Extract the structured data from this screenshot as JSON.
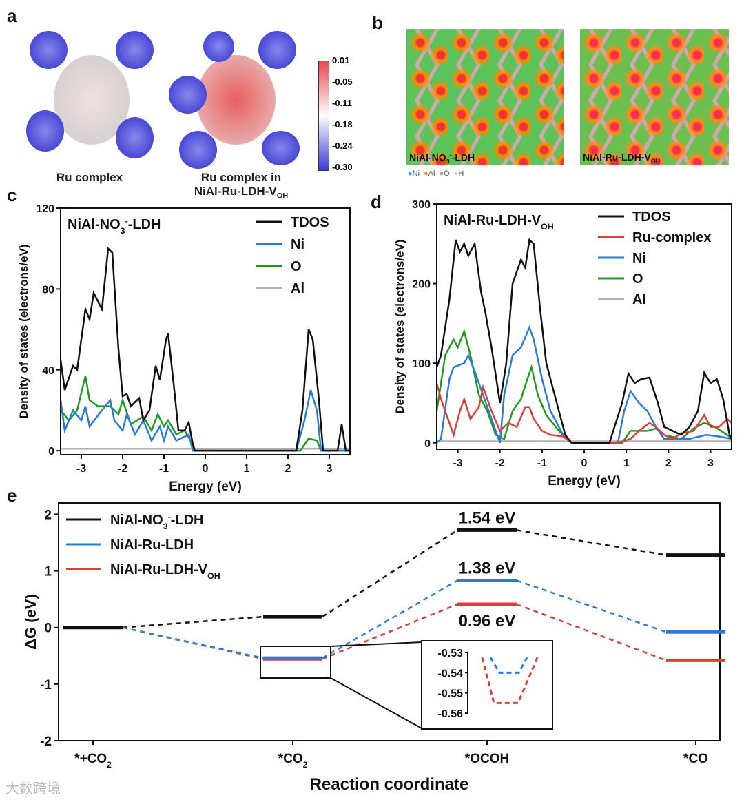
{
  "panels": {
    "a": "a",
    "b": "b",
    "c": "c",
    "d": "d",
    "e": "e"
  },
  "panel_a": {
    "caption1": "Ru complex",
    "caption2_line1": "Ru complex in",
    "caption2_line2": "NiAl-Ru-LDH-V",
    "caption2_sub": "OH",
    "colorbar_ticks": [
      "0.01",
      "-0.05",
      "-0.11",
      "-0.18",
      "-0.24",
      "-0.30"
    ],
    "colors": {
      "high": "#e8474b",
      "mid": "#ffffff",
      "low": "#3a3ad8"
    }
  },
  "panel_b": {
    "label1": "NiAl-NO",
    "label1_sub": "3",
    "label1_sup": "-",
    "label1_end": "-LDH",
    "label2": "NiAl-Ru-LDH-V",
    "label2_sub": "OH",
    "legend": [
      "Ni",
      "Al",
      "O",
      "H"
    ]
  },
  "chart_data": [
    {
      "type": "line",
      "panel": "c",
      "title": "NiAl-NO3--LDH",
      "xlabel": "Energy (eV)",
      "ylabel": "Density of states (electrons/eV)",
      "xlim": [
        -3.5,
        3.5
      ],
      "ylim": [
        -2,
        120
      ],
      "xticks": [
        -3,
        -2,
        -1,
        0,
        1,
        2,
        3
      ],
      "yticks": [
        0,
        40,
        80,
        120
      ],
      "legend_position": "top-right",
      "series": [
        {
          "name": "TDOS",
          "color": "#111111",
          "points": [
            [
              -3.5,
              45
            ],
            [
              -3.4,
              30
            ],
            [
              -3.2,
              42
            ],
            [
              -3.1,
              40
            ],
            [
              -2.9,
              70
            ],
            [
              -2.8,
              65
            ],
            [
              -2.7,
              78
            ],
            [
              -2.5,
              70
            ],
            [
              -2.35,
              100
            ],
            [
              -2.25,
              98
            ],
            [
              -2.1,
              50
            ],
            [
              -2.0,
              27
            ],
            [
              -1.9,
              28
            ],
            [
              -1.8,
              22
            ],
            [
              -1.6,
              26
            ],
            [
              -1.5,
              15
            ],
            [
              -1.35,
              20
            ],
            [
              -1.2,
              42
            ],
            [
              -1.1,
              35
            ],
            [
              -0.95,
              55
            ],
            [
              -0.9,
              58
            ],
            [
              -0.75,
              30
            ],
            [
              -0.65,
              10
            ],
            [
              -0.5,
              10
            ],
            [
              -0.4,
              14
            ],
            [
              -0.3,
              3
            ],
            [
              -0.25,
              0
            ],
            [
              2.2,
              0
            ],
            [
              2.35,
              20
            ],
            [
              2.5,
              60
            ],
            [
              2.6,
              55
            ],
            [
              2.75,
              25
            ],
            [
              2.85,
              0
            ],
            [
              3.2,
              0
            ],
            [
              3.3,
              13
            ],
            [
              3.4,
              0
            ],
            [
              3.5,
              0
            ]
          ]
        },
        {
          "name": "Ni",
          "color": "#2a7bd4",
          "points": [
            [
              -3.5,
              25
            ],
            [
              -3.4,
              10
            ],
            [
              -3.2,
              20
            ],
            [
              -3.0,
              15
            ],
            [
              -2.9,
              22
            ],
            [
              -2.8,
              12
            ],
            [
              -2.5,
              20
            ],
            [
              -2.3,
              25
            ],
            [
              -2.2,
              15
            ],
            [
              -2.0,
              10
            ],
            [
              -1.9,
              18
            ],
            [
              -1.7,
              8
            ],
            [
              -1.5,
              15
            ],
            [
              -1.3,
              5
            ],
            [
              -1.1,
              12
            ],
            [
              -1.0,
              5
            ],
            [
              -0.9,
              12
            ],
            [
              -0.7,
              5
            ],
            [
              -0.4,
              8
            ],
            [
              -0.3,
              0
            ],
            [
              2.2,
              0
            ],
            [
              2.4,
              15
            ],
            [
              2.55,
              30
            ],
            [
              2.7,
              20
            ],
            [
              2.8,
              0
            ],
            [
              3.5,
              0
            ]
          ]
        },
        {
          "name": "O",
          "color": "#1f9a1f",
          "points": [
            [
              -3.5,
              20
            ],
            [
              -3.3,
              15
            ],
            [
              -3.1,
              20
            ],
            [
              -2.9,
              37
            ],
            [
              -2.8,
              25
            ],
            [
              -2.6,
              22
            ],
            [
              -2.3,
              22
            ],
            [
              -2.1,
              18
            ],
            [
              -2.0,
              25
            ],
            [
              -1.8,
              13
            ],
            [
              -1.5,
              17
            ],
            [
              -1.3,
              10
            ],
            [
              -1.15,
              18
            ],
            [
              -1.0,
              12
            ],
            [
              -0.9,
              15
            ],
            [
              -0.7,
              8
            ],
            [
              -0.5,
              10
            ],
            [
              -0.3,
              3
            ],
            [
              -0.25,
              0
            ],
            [
              2.3,
              0
            ],
            [
              2.5,
              6
            ],
            [
              2.7,
              5
            ],
            [
              2.8,
              0
            ],
            [
              3.5,
              0
            ]
          ]
        },
        {
          "name": "Al",
          "color": "#b0b0b0",
          "points": [
            [
              -3.5,
              1
            ],
            [
              3.5,
              1
            ]
          ]
        }
      ]
    },
    {
      "type": "line",
      "panel": "d",
      "title": "NiAl-Ru-LDH-VOH",
      "xlabel": "Energy (eV)",
      "ylabel": "Density of states (electrons/eV)",
      "xlim": [
        -3.5,
        3.5
      ],
      "ylim": [
        -8,
        300
      ],
      "xticks": [
        -3,
        -2,
        -1,
        0,
        1,
        2,
        3
      ],
      "yticks": [
        0,
        100,
        200,
        300
      ],
      "legend_position": "top-right",
      "series": [
        {
          "name": "TDOS",
          "color": "#111111",
          "points": [
            [
              -3.5,
              95
            ],
            [
              -3.4,
              110
            ],
            [
              -3.2,
              180
            ],
            [
              -3.05,
              255
            ],
            [
              -2.95,
              240
            ],
            [
              -2.85,
              250
            ],
            [
              -2.75,
              235
            ],
            [
              -2.6,
              250
            ],
            [
              -2.45,
              190
            ],
            [
              -2.35,
              165
            ],
            [
              -2.2,
              120
            ],
            [
              -2.0,
              50
            ],
            [
              -1.85,
              100
            ],
            [
              -1.7,
              200
            ],
            [
              -1.6,
              215
            ],
            [
              -1.5,
              230
            ],
            [
              -1.4,
              220
            ],
            [
              -1.3,
              255
            ],
            [
              -1.2,
              250
            ],
            [
              -1.05,
              170
            ],
            [
              -0.9,
              100
            ],
            [
              -0.7,
              60
            ],
            [
              -0.45,
              10
            ],
            [
              -0.3,
              0
            ],
            [
              0.6,
              0
            ],
            [
              0.9,
              50
            ],
            [
              1.05,
              87
            ],
            [
              1.2,
              75
            ],
            [
              1.35,
              80
            ],
            [
              1.55,
              82
            ],
            [
              1.75,
              50
            ],
            [
              1.9,
              20
            ],
            [
              2.1,
              15
            ],
            [
              2.3,
              10
            ],
            [
              2.5,
              20
            ],
            [
              2.7,
              40
            ],
            [
              2.85,
              88
            ],
            [
              3.0,
              75
            ],
            [
              3.15,
              80
            ],
            [
              3.3,
              55
            ],
            [
              3.45,
              10
            ],
            [
              3.5,
              5
            ]
          ]
        },
        {
          "name": "Ru-complex",
          "color": "#d9403a",
          "points": [
            [
              -3.5,
              75
            ],
            [
              -3.4,
              55
            ],
            [
              -3.3,
              40
            ],
            [
              -3.1,
              10
            ],
            [
              -2.95,
              40
            ],
            [
              -2.85,
              55
            ],
            [
              -2.7,
              30
            ],
            [
              -2.5,
              45
            ],
            [
              -2.4,
              70
            ],
            [
              -2.2,
              40
            ],
            [
              -2.0,
              15
            ],
            [
              -1.8,
              25
            ],
            [
              -1.6,
              20
            ],
            [
              -1.4,
              45
            ],
            [
              -1.3,
              45
            ],
            [
              -1.2,
              30
            ],
            [
              -1.0,
              15
            ],
            [
              -0.8,
              10
            ],
            [
              -0.5,
              8
            ],
            [
              -0.3,
              0
            ],
            [
              0.8,
              0
            ],
            [
              1.1,
              5
            ],
            [
              1.3,
              15
            ],
            [
              1.55,
              25
            ],
            [
              1.7,
              20
            ],
            [
              1.9,
              10
            ],
            [
              2.1,
              5
            ],
            [
              2.3,
              12
            ],
            [
              2.6,
              15
            ],
            [
              2.85,
              35
            ],
            [
              3.0,
              20
            ],
            [
              3.2,
              20
            ],
            [
              3.4,
              30
            ],
            [
              3.5,
              25
            ]
          ]
        },
        {
          "name": "Ni",
          "color": "#2a7bd4",
          "points": [
            [
              -3.5,
              0
            ],
            [
              -3.4,
              5
            ],
            [
              -3.2,
              80
            ],
            [
              -3.1,
              95
            ],
            [
              -2.85,
              100
            ],
            [
              -2.75,
              110
            ],
            [
              -2.6,
              90
            ],
            [
              -2.4,
              60
            ],
            [
              -2.2,
              30
            ],
            [
              -2.0,
              0
            ],
            [
              -1.9,
              60
            ],
            [
              -1.7,
              110
            ],
            [
              -1.5,
              120
            ],
            [
              -1.3,
              145
            ],
            [
              -1.2,
              130
            ],
            [
              -1.0,
              80
            ],
            [
              -0.8,
              40
            ],
            [
              -0.5,
              10
            ],
            [
              -0.3,
              0
            ],
            [
              0.8,
              0
            ],
            [
              0.95,
              40
            ],
            [
              1.1,
              65
            ],
            [
              1.3,
              50
            ],
            [
              1.5,
              40
            ],
            [
              1.7,
              20
            ],
            [
              1.9,
              5
            ],
            [
              2.5,
              5
            ],
            [
              2.9,
              10
            ],
            [
              3.2,
              8
            ],
            [
              3.5,
              5
            ]
          ]
        },
        {
          "name": "O",
          "color": "#1f9a1f",
          "points": [
            [
              -3.5,
              40
            ],
            [
              -3.3,
              110
            ],
            [
              -3.1,
              130
            ],
            [
              -3.0,
              120
            ],
            [
              -2.85,
              140
            ],
            [
              -2.7,
              110
            ],
            [
              -2.5,
              60
            ],
            [
              -2.3,
              40
            ],
            [
              -2.1,
              10
            ],
            [
              -1.9,
              5
            ],
            [
              -1.7,
              40
            ],
            [
              -1.5,
              55
            ],
            [
              -1.35,
              80
            ],
            [
              -1.25,
              95
            ],
            [
              -1.1,
              60
            ],
            [
              -0.9,
              35
            ],
            [
              -0.6,
              15
            ],
            [
              -0.3,
              0
            ],
            [
              0.9,
              0
            ],
            [
              1.1,
              15
            ],
            [
              1.5,
              15
            ],
            [
              1.7,
              18
            ],
            [
              1.9,
              10
            ],
            [
              2.3,
              5
            ],
            [
              2.6,
              18
            ],
            [
              2.85,
              25
            ],
            [
              3.1,
              20
            ],
            [
              3.4,
              10
            ],
            [
              3.5,
              5
            ]
          ]
        },
        {
          "name": "Al",
          "color": "#b0b0b0",
          "points": [
            [
              -3.5,
              2
            ],
            [
              3.5,
              2
            ]
          ]
        }
      ]
    },
    {
      "type": "line",
      "panel": "e",
      "title": "",
      "xlabel": "Reaction coordinate",
      "ylabel": "ΔG (eV)",
      "ylim": [
        -2,
        2.2
      ],
      "yticks": [
        -2,
        -1,
        0,
        1,
        2
      ],
      "categories": [
        "*+CO2",
        "*CO2",
        "*OCOH",
        "*CO"
      ],
      "legend_position": "top-left",
      "series": [
        {
          "name": "NiAl-NO3--LDH",
          "color": "#111111",
          "values": [
            0,
            0.19,
            1.72,
            1.28
          ],
          "annotation": "1.54 eV"
        },
        {
          "name": "NiAl-Ru-LDH",
          "color": "#2a7bd4",
          "values": [
            0,
            -0.54,
            0.83,
            -0.08
          ],
          "annotation": "1.38 eV"
        },
        {
          "name": "NiAl-Ru-LDH-VOH",
          "color": "#d9403a",
          "values": [
            0,
            -0.555,
            0.41,
            -0.58
          ],
          "annotation": "0.96 eV"
        }
      ],
      "inset": {
        "ylim": [
          -0.56,
          -0.53
        ],
        "yticks": [
          "-0.53",
          "-0.54",
          "-0.55",
          "-0.56"
        ]
      }
    }
  ],
  "text": {
    "c_title": "NiAl-NO",
    "c_title_sub": "3",
    "c_title_sup": "-",
    "c_title_end": "-LDH",
    "d_title": "NiAl-Ru-LDH-V",
    "d_title_sub": "OH",
    "e_leg1": "NiAl-NO",
    "e_leg1_sub": "3",
    "e_leg1_sup": "-",
    "e_leg1_end": "-LDH",
    "e_leg2": "NiAl-Ru-LDH",
    "e_leg3": "NiAl-Ru-LDH-V",
    "e_leg3_sub": "OH",
    "e_cat_sub": "2",
    "e_cats": [
      "*+CO",
      "*CO",
      "*OCOH",
      "*CO"
    ],
    "watermark": "大数跨境"
  }
}
